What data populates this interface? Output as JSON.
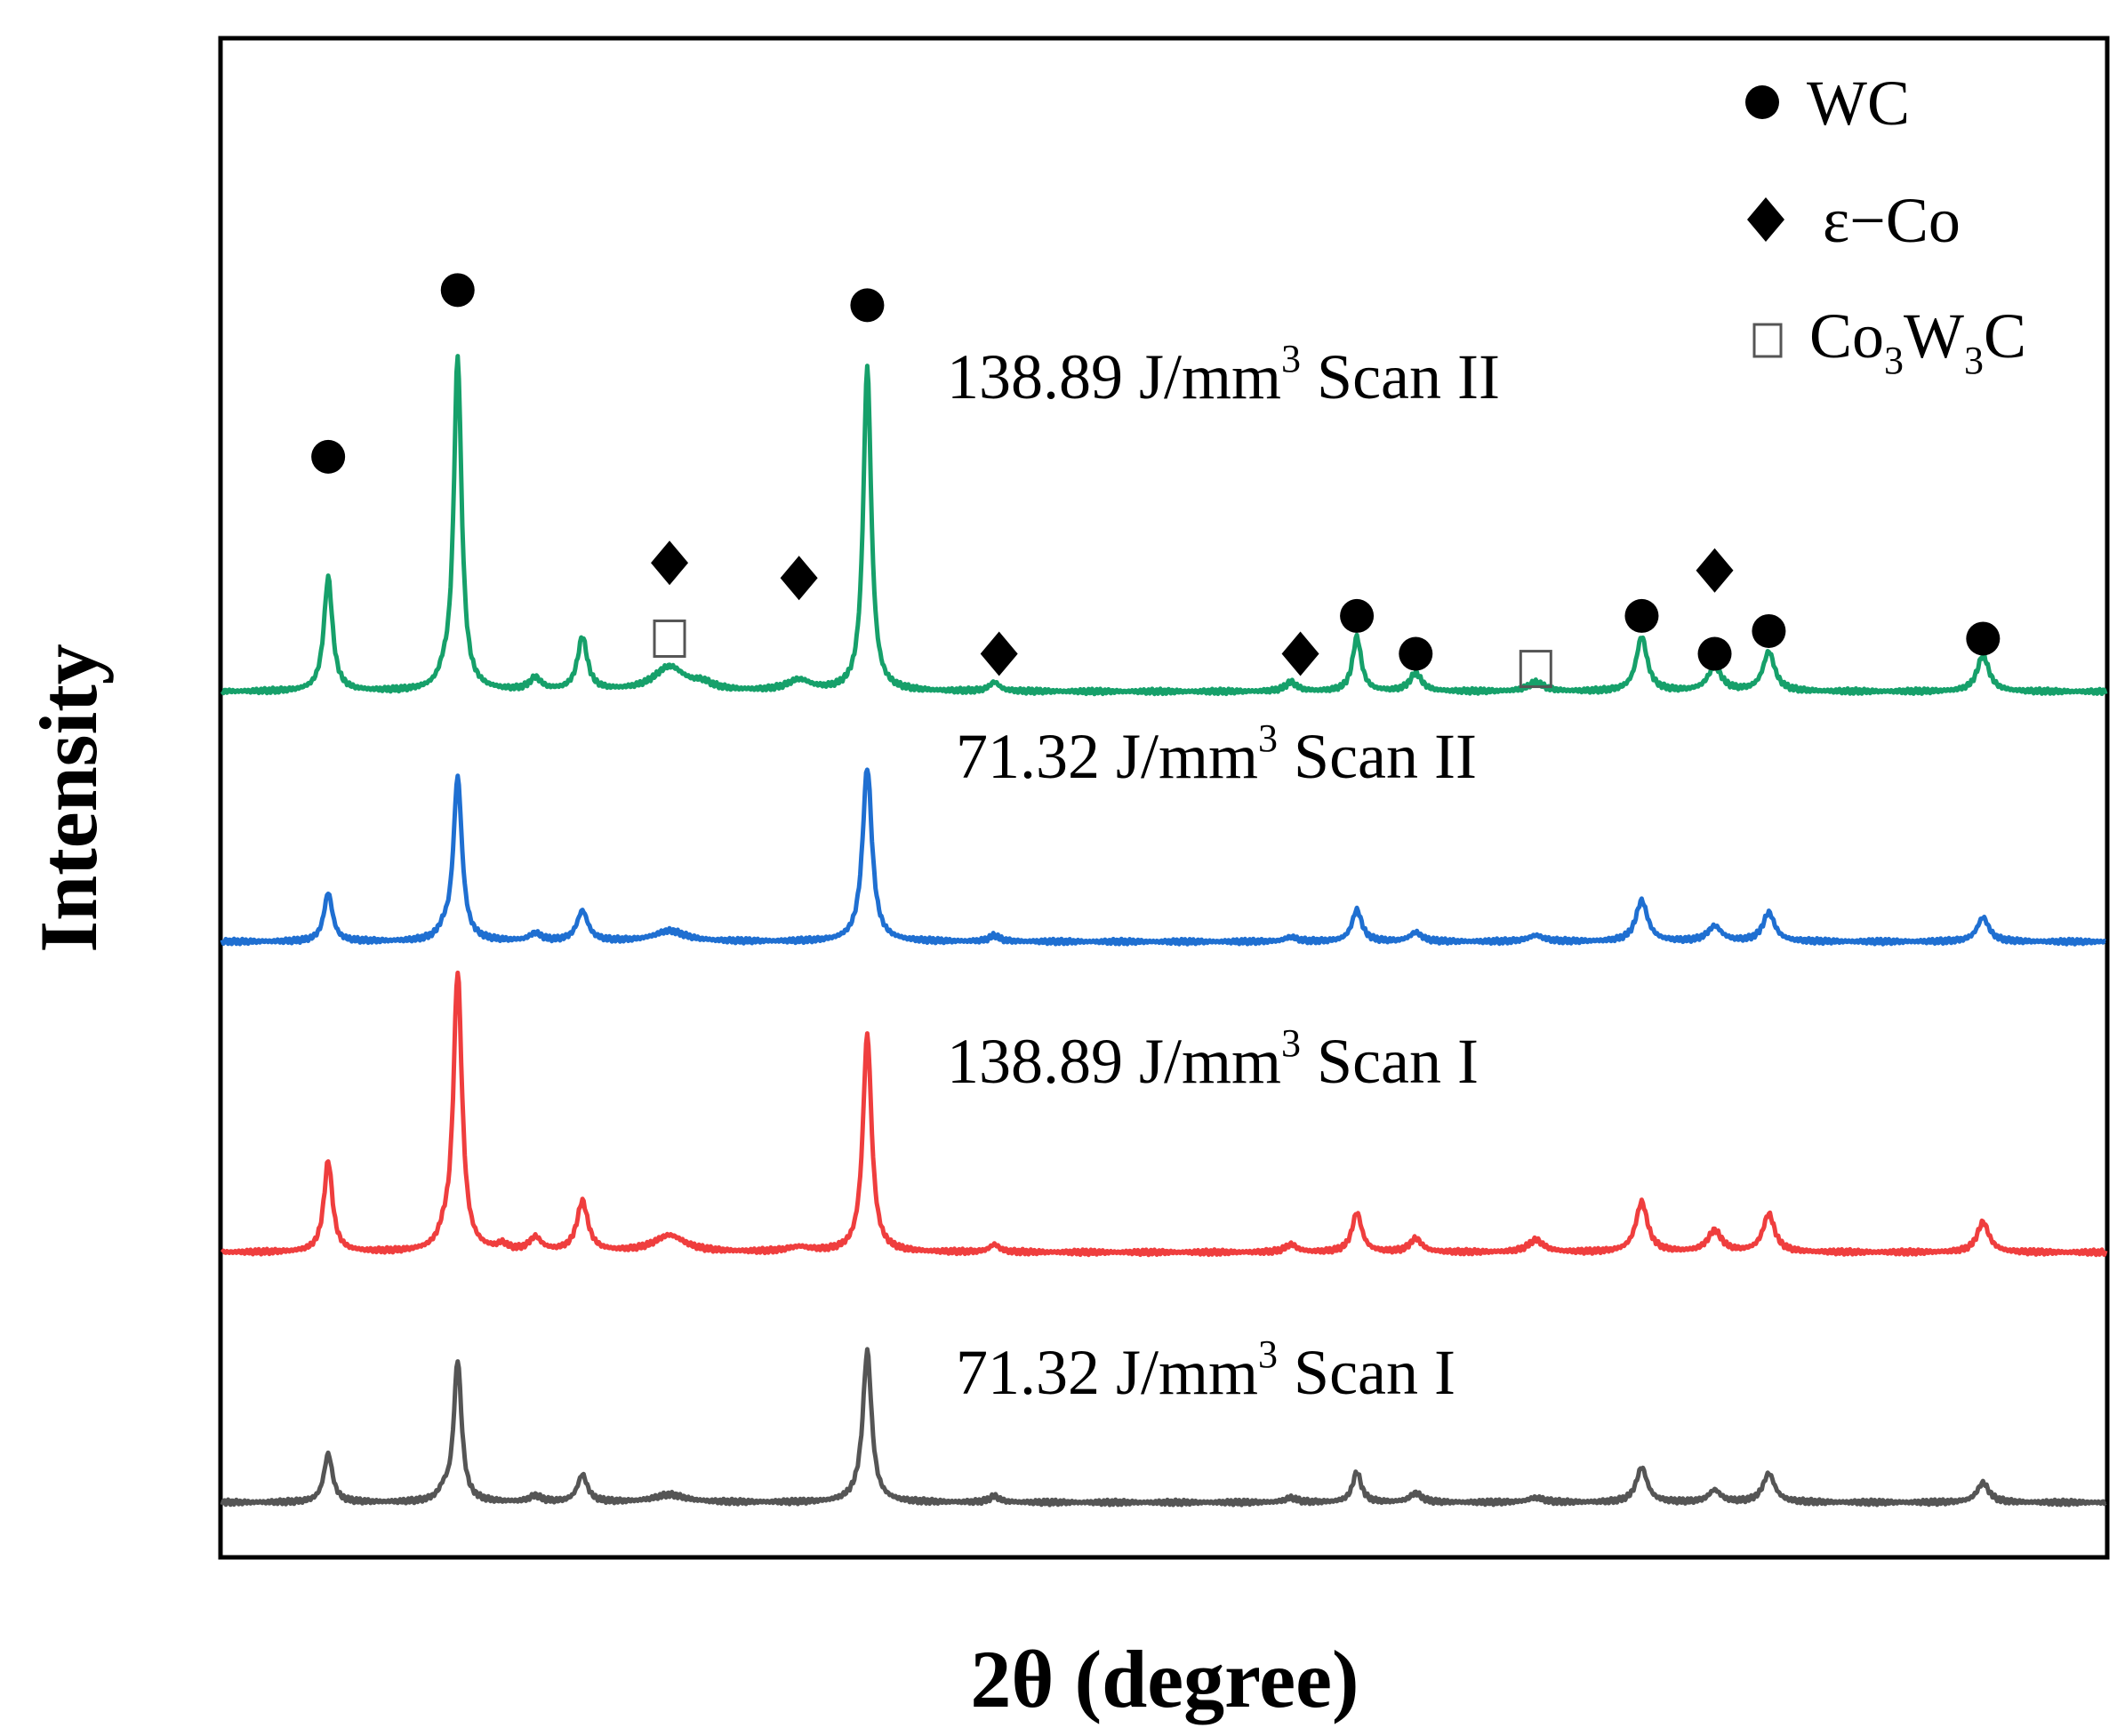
{
  "chart_data": {
    "type": "line",
    "title": "",
    "xlabel": "2θ (degree)",
    "ylabel": "Intensity",
    "xlim": [
      20,
      100
    ],
    "ylim": [
      0,
      100
    ],
    "grid": false,
    "x_ticks_shown": false,
    "y_ticks_shown": false,
    "legend": {
      "placement": "top-right",
      "entries": [
        {
          "marker": "circle",
          "symbol": "●",
          "label": "WC"
        },
        {
          "marker": "diamond",
          "symbol": "◆",
          "label": "ε−Co"
        },
        {
          "marker": "square",
          "symbol": "□",
          "label_main": "Co",
          "sub1": "3",
          "label_mid": "W",
          "sub2": "3",
          "label_end": "C"
        }
      ]
    },
    "series": [
      {
        "name": "71.32 J/mm3 Scan I",
        "label_main": "71.32 J/mm",
        "label_sup": "3",
        "label_tail": " Scan I",
        "color": "#555555",
        "baseline": 3.5,
        "peaks": [
          [
            24.5,
            3.2,
            0.22
          ],
          [
            29.4,
            0.6,
            0.25
          ],
          [
            30.0,
            9.3,
            0.2
          ],
          [
            33.3,
            0.4,
            0.3
          ],
          [
            35.3,
            1.8,
            0.25
          ],
          [
            39.0,
            0.5,
            0.8
          ],
          [
            47.1,
            0.3,
            0.5
          ],
          [
            47.4,
            9.8,
            0.22
          ],
          [
            52.8,
            0.4,
            0.25
          ],
          [
            65.4,
            0.3,
            0.3
          ],
          [
            68.2,
            2.0,
            0.22
          ],
          [
            70.7,
            0.6,
            0.3
          ],
          [
            75.8,
            0.3,
            0.4
          ],
          [
            80.3,
            2.3,
            0.28
          ],
          [
            83.4,
            0.8,
            0.3
          ],
          [
            85.7,
            1.9,
            0.3
          ],
          [
            94.8,
            1.3,
            0.3
          ]
        ]
      },
      {
        "name": "138.89 J/mm3 Scan I",
        "label_main": "138.89 J/mm",
        "label_sup": "3",
        "label_tail": " Scan I",
        "color": "#ef3e3e",
        "baseline": 20,
        "peaks": [
          [
            24.5,
            6.0,
            0.22
          ],
          [
            29.4,
            0.7,
            0.25
          ],
          [
            30.0,
            18.4,
            0.22
          ],
          [
            31.9,
            0.4,
            0.25
          ],
          [
            33.3,
            0.9,
            0.3
          ],
          [
            35.3,
            3.3,
            0.28
          ],
          [
            39.0,
            1.1,
            0.8
          ],
          [
            44.5,
            0.3,
            0.6
          ],
          [
            47.4,
            14.4,
            0.22
          ],
          [
            52.8,
            0.5,
            0.25
          ],
          [
            65.4,
            0.5,
            0.3
          ],
          [
            68.2,
            2.6,
            0.25
          ],
          [
            70.7,
            0.9,
            0.3
          ],
          [
            75.8,
            0.8,
            0.4
          ],
          [
            80.3,
            3.3,
            0.3
          ],
          [
            83.4,
            1.4,
            0.35
          ],
          [
            85.7,
            2.5,
            0.3
          ],
          [
            94.8,
            2.0,
            0.3
          ]
        ]
      },
      {
        "name": "71.32 J/mm3 Scan II",
        "label_main": "71.32 J/mm",
        "label_sup": "3",
        "label_tail": " Scan II",
        "color": "#1f6fd1",
        "baseline": 40.5,
        "peaks": [
          [
            24.5,
            3.2,
            0.22
          ],
          [
            29.4,
            0.5,
            0.25
          ],
          [
            30.0,
            10.8,
            0.22
          ],
          [
            33.3,
            0.5,
            0.3
          ],
          [
            35.3,
            2.0,
            0.28
          ],
          [
            39.0,
            0.7,
            0.8
          ],
          [
            47.4,
            11.5,
            0.24
          ],
          [
            52.8,
            0.4,
            0.25
          ],
          [
            65.4,
            0.3,
            0.3
          ],
          [
            68.2,
            2.1,
            0.25
          ],
          [
            70.7,
            0.6,
            0.3
          ],
          [
            75.8,
            0.4,
            0.4
          ],
          [
            80.3,
            2.7,
            0.3
          ],
          [
            83.4,
            1.0,
            0.35
          ],
          [
            85.7,
            1.9,
            0.3
          ],
          [
            94.8,
            1.6,
            0.3
          ]
        ]
      },
      {
        "name": "138.89 J/mm3 Scan II",
        "label_main": "138.89 J/mm",
        "label_sup": "3",
        "label_tail": " Scan II",
        "color": "#16a06a",
        "baseline": 57,
        "peaks": [
          [
            24.5,
            7.5,
            0.22
          ],
          [
            29.4,
            0.6,
            0.25
          ],
          [
            30.0,
            22.0,
            0.2
          ],
          [
            33.3,
            0.8,
            0.3
          ],
          [
            35.3,
            3.5,
            0.25
          ],
          [
            39.0,
            1.6,
            0.8
          ],
          [
            40.4,
            0.4,
            0.5
          ],
          [
            44.5,
            0.7,
            0.6
          ],
          [
            47.4,
            21.5,
            0.2
          ],
          [
            52.8,
            0.6,
            0.25
          ],
          [
            65.4,
            0.6,
            0.3
          ],
          [
            68.2,
            3.6,
            0.22
          ],
          [
            70.7,
            1.2,
            0.3
          ],
          [
            75.8,
            0.6,
            0.4
          ],
          [
            80.3,
            3.6,
            0.28
          ],
          [
            83.4,
            1.6,
            0.35
          ],
          [
            85.7,
            2.6,
            0.3
          ],
          [
            94.8,
            2.4,
            0.3
          ]
        ]
      }
    ],
    "annotations": {
      "circles_WC": [
        [
          24.5,
          72.5
        ],
        [
          30.0,
          83.5
        ],
        [
          47.4,
          82.5
        ],
        [
          68.2,
          62.0
        ],
        [
          70.7,
          59.5
        ],
        [
          80.3,
          62.0
        ],
        [
          83.4,
          59.5
        ],
        [
          85.7,
          61.0
        ],
        [
          94.8,
          60.5
        ]
      ],
      "diamonds_eCo": [
        [
          39.0,
          65.5
        ],
        [
          44.5,
          64.5
        ],
        [
          53.0,
          59.5
        ],
        [
          65.8,
          59.5
        ],
        [
          83.4,
          65.0
        ]
      ],
      "squares_Co3W3C": [
        [
          39.0,
          60.5
        ],
        [
          75.8,
          58.5
        ]
      ]
    }
  }
}
